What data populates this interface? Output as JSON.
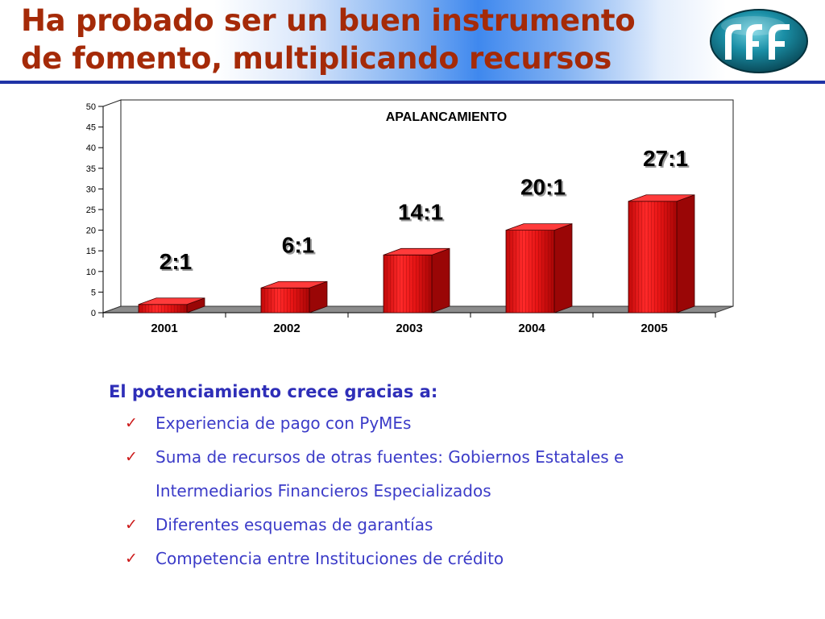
{
  "slide": {
    "title_lines": [
      "Ha probado ser un buen instrumento",
      "de fomento, multiplicando recursos"
    ]
  },
  "chart_data": {
    "type": "bar",
    "title": "APALANCAMIENTO",
    "categories": [
      "2001",
      "2002",
      "2003",
      "2004",
      "2005"
    ],
    "values": [
      2,
      6,
      14,
      20,
      27
    ],
    "data_labels": [
      "2:1",
      "6:1",
      "14:1",
      "20:1",
      "27:1"
    ],
    "y_ticks": [
      "0",
      "5",
      "10",
      "15",
      "20",
      "25",
      "30",
      "35",
      "40",
      "45",
      "50"
    ],
    "ylim": [
      0,
      50
    ],
    "xlabel": "",
    "ylabel": "",
    "grid": false,
    "style": "3d-cylinder",
    "bar_color": "#e01010"
  },
  "bullets": {
    "heading": "El potenciamiento crece gracias a:",
    "items": [
      {
        "lines": [
          "Experiencia de pago con PyMEs"
        ]
      },
      {
        "lines": [
          "Suma de recursos de otras fuentes: Gobiernos Estatales e",
          "Intermediarios Financieros Especializados"
        ]
      },
      {
        "lines": [
          "Diferentes esquemas de garantías"
        ]
      },
      {
        "lines": [
          "Competencia entre Instituciones de crédito"
        ]
      }
    ],
    "check_color": "#cc1a1a",
    "text_color": "#3b3bc8"
  },
  "colors": {
    "title": "#a52a08",
    "rule": "#1f33a6",
    "heading": "#2e2eb8"
  }
}
